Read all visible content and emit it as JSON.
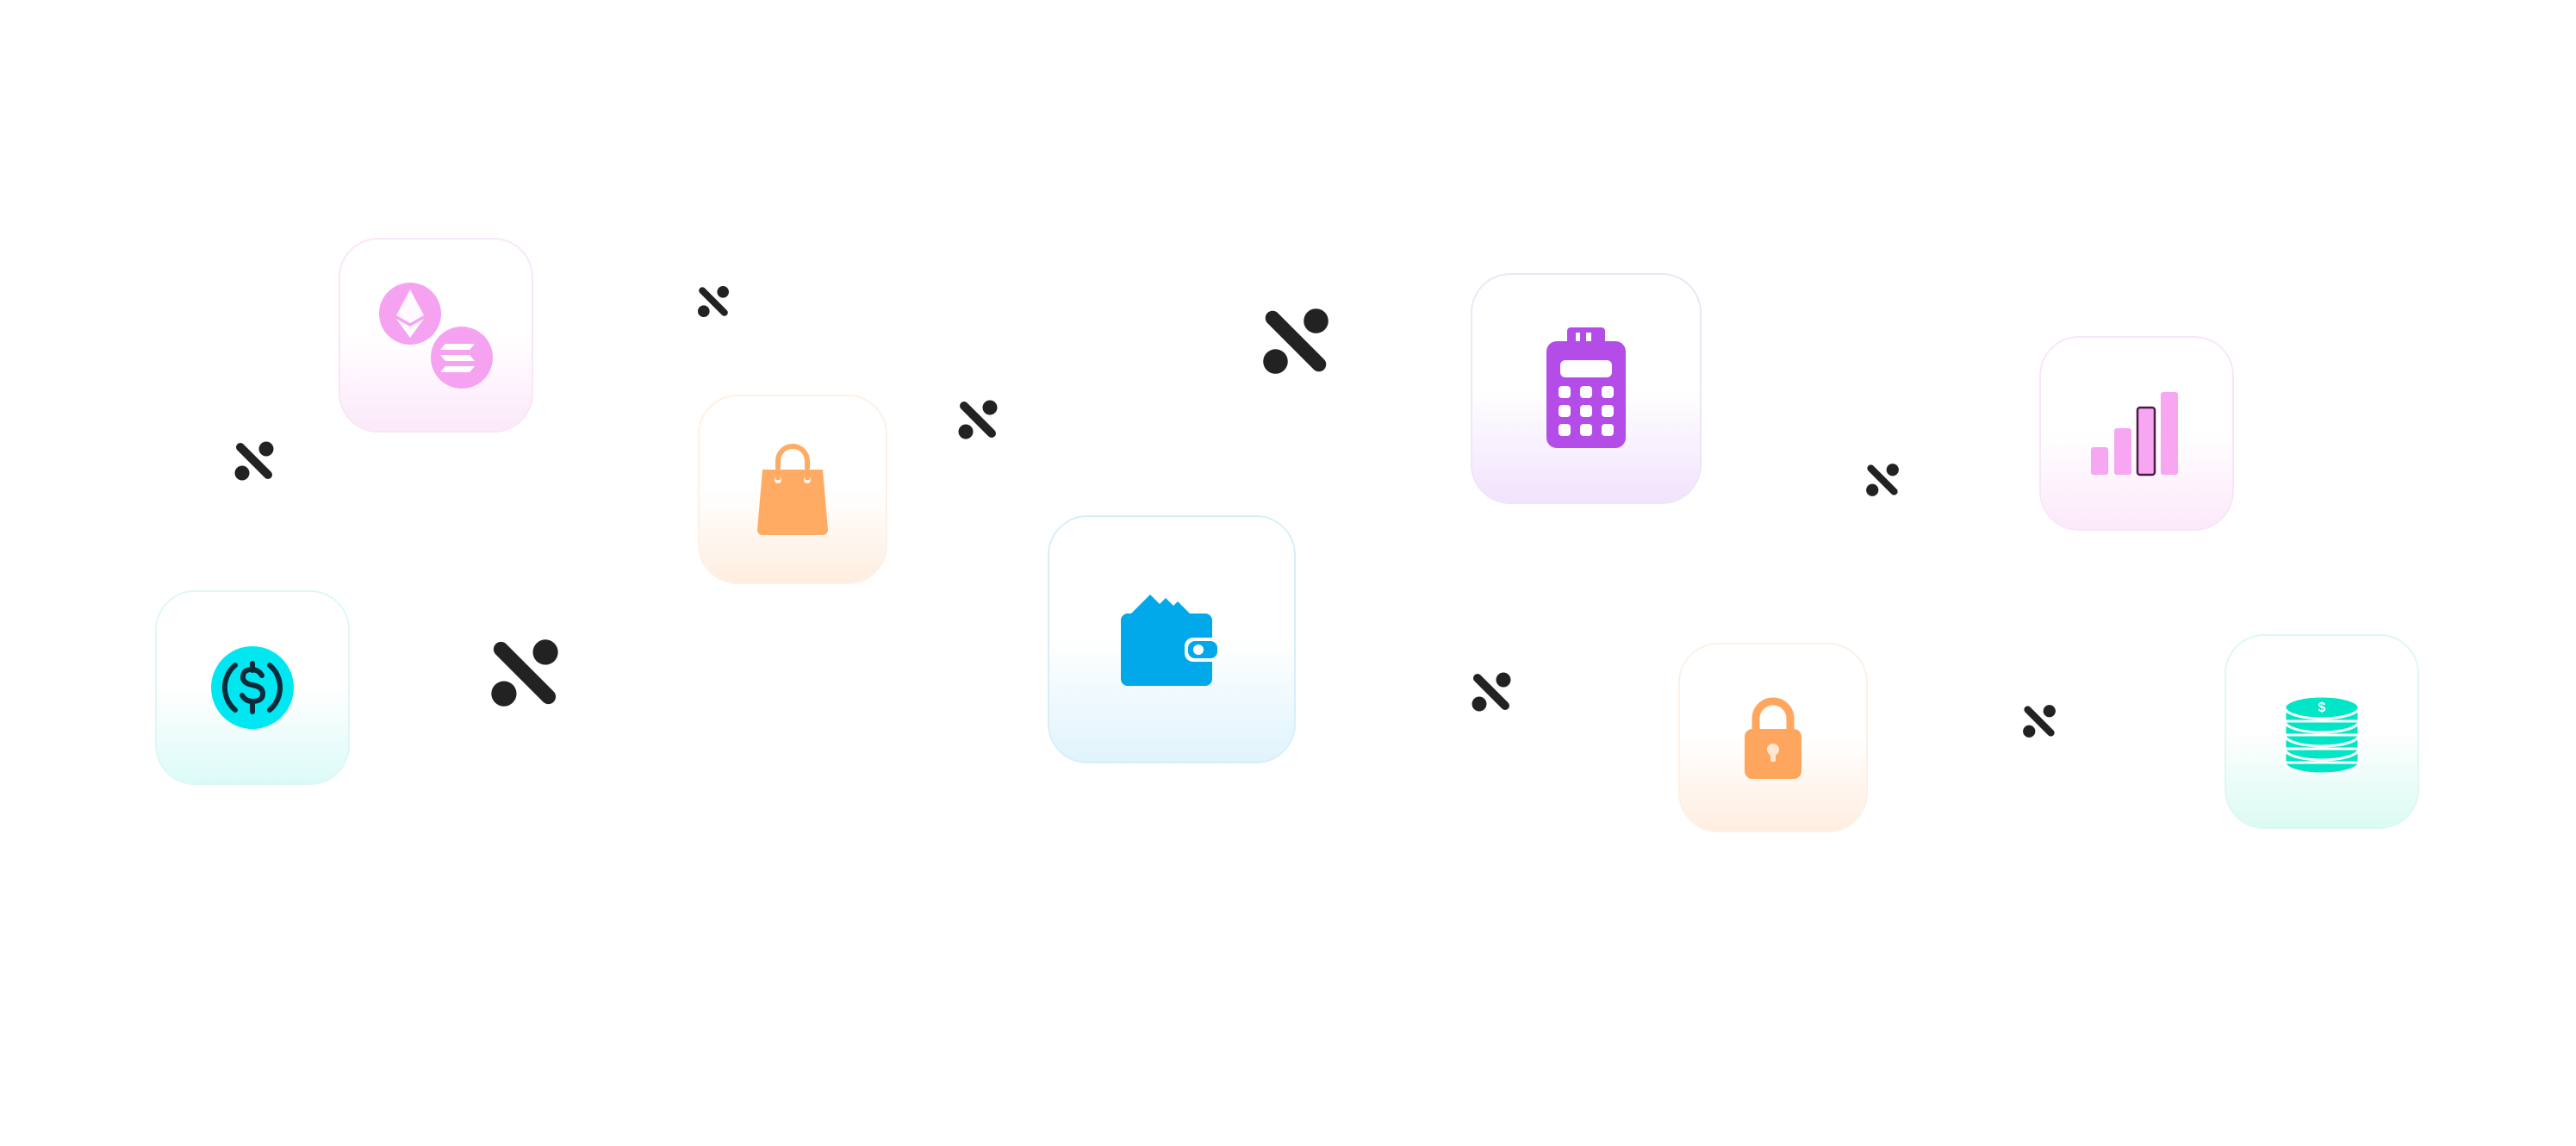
{
  "tiles": [
    {
      "name": "crypto-coins-tile",
      "icon": "ethereum-solana-icon",
      "accent": "#f5a3f0"
    },
    {
      "name": "shopping-bag-tile",
      "icon": "shopping-bag-icon",
      "accent": "#ffab63"
    },
    {
      "name": "wallet-tile",
      "icon": "wallet-icon",
      "accent": "#02a9ea"
    },
    {
      "name": "card-terminal-tile",
      "icon": "card-terminal-icon",
      "accent": "#b44de8"
    },
    {
      "name": "growth-bars-tile",
      "icon": "bar-chart-icon",
      "accent": "#f7a6f2"
    },
    {
      "name": "usdc-coin-tile",
      "icon": "dollar-coin-icon",
      "accent": "#00e7f2"
    },
    {
      "name": "lock-tile",
      "icon": "padlock-icon",
      "accent": "#ffa65e"
    },
    {
      "name": "coin-stack-tile",
      "icon": "coin-stack-icon",
      "accent": "#00e6c6"
    }
  ],
  "decor": {
    "mark_icon": "x-logo-mark-icon",
    "mark_color": "#222222"
  }
}
